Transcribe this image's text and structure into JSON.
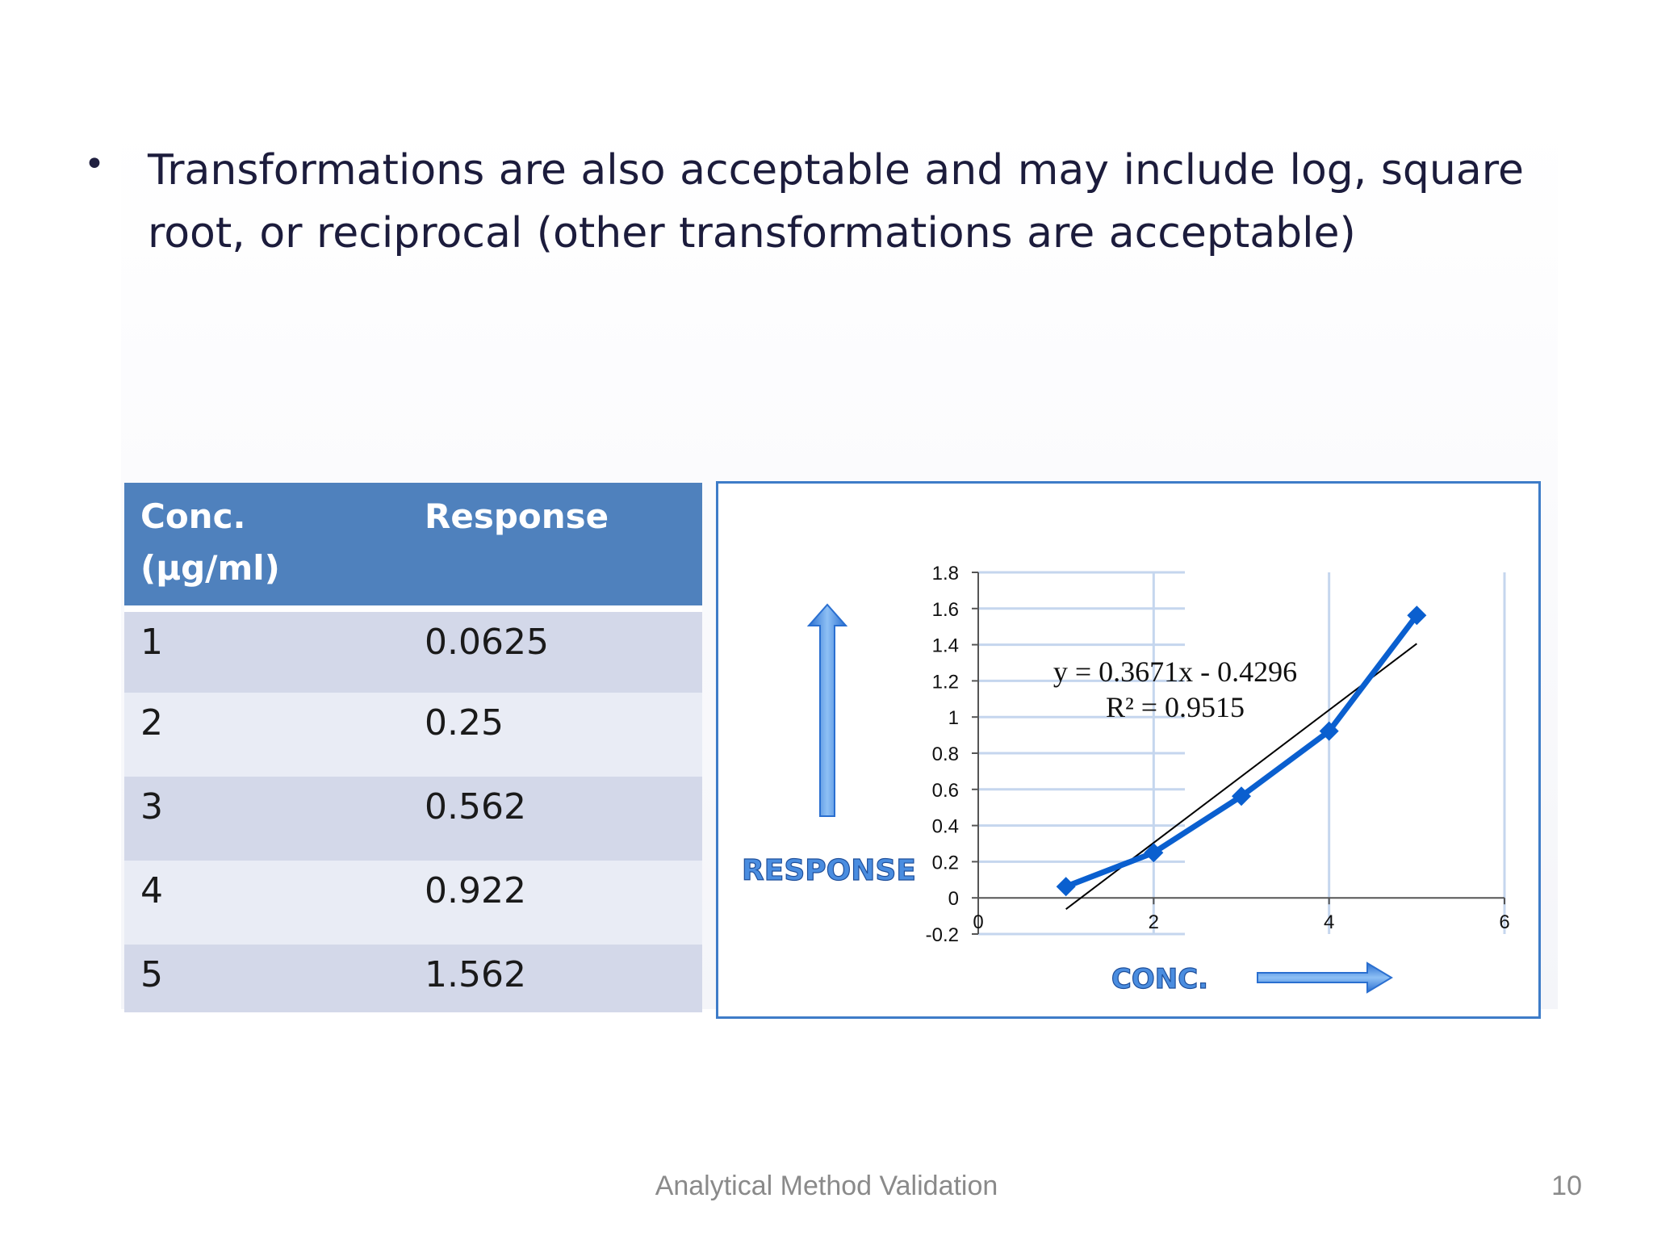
{
  "slide": {
    "bullet": "Transformations are also acceptable and may include log,   square root, or reciprocal (other transformations are acceptable)",
    "footer": "Analytical Method Validation",
    "page_number": "10"
  },
  "table": {
    "headers": [
      "Conc. (µg/ml)",
      "Response"
    ],
    "rows": [
      [
        "1",
        "0.0625"
      ],
      [
        "2",
        "0.25"
      ],
      [
        "3",
        "0.562"
      ],
      [
        "4",
        "0.922"
      ],
      [
        "5",
        "1.562"
      ]
    ]
  },
  "chart_data": {
    "type": "line",
    "x": [
      1,
      2,
      3,
      4,
      5
    ],
    "series": [
      {
        "values": [
          0.0625,
          0.25,
          0.562,
          0.922,
          1.562
        ],
        "color": "#0a5fcf",
        "marker": "diamond"
      }
    ],
    "trendline": {
      "slope": 0.3671,
      "intercept": -0.4296,
      "color": "#000000"
    },
    "annotations": [
      "y = 0.3671x - 0.4296",
      "R² = 0.9515"
    ],
    "xlabel": "CONC.",
    "ylabel": "RESPONSE",
    "xlim": [
      0,
      6
    ],
    "ylim": [
      -0.2,
      1.8
    ],
    "xticks": [
      "0",
      "2",
      "4",
      "6"
    ],
    "yticks": [
      "-0.2",
      "0",
      "0.2",
      "0.4",
      "0.6",
      "0.8",
      "1",
      "1.2",
      "1.4",
      "1.6",
      "1.8"
    ],
    "grid": true,
    "accent_color": "#4a8de0"
  }
}
